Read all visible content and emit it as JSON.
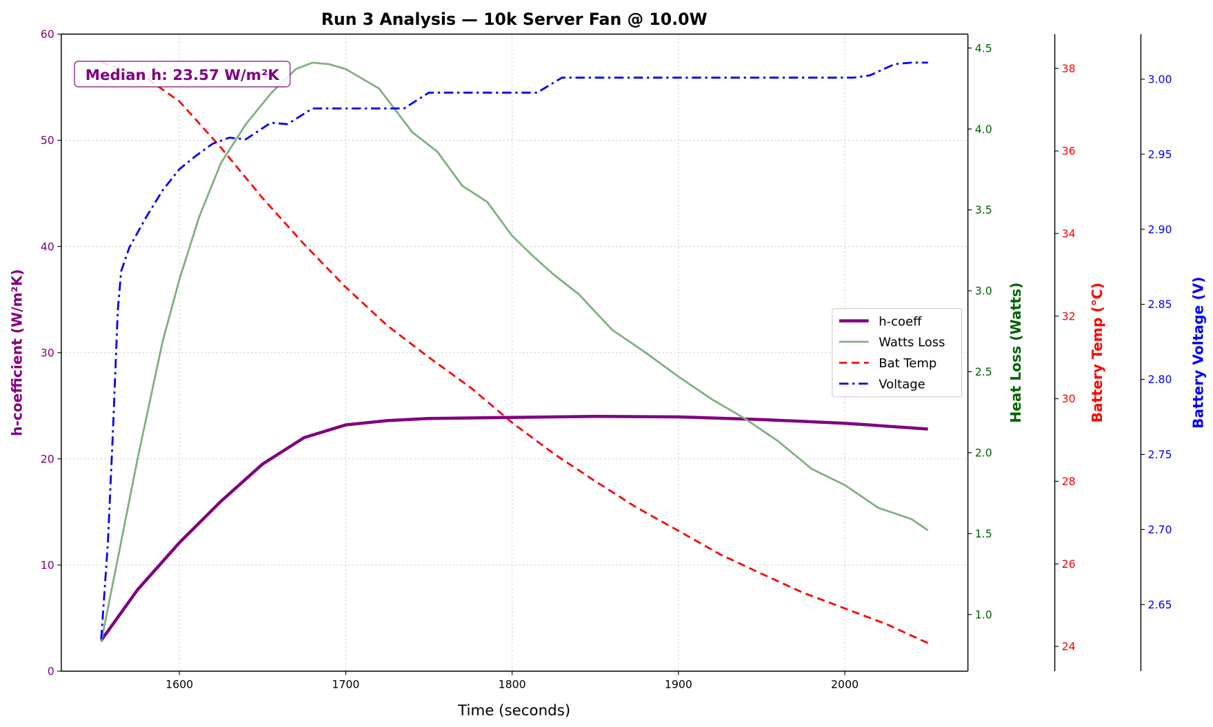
{
  "chart_data": {
    "type": "line",
    "title": "Run 3 Analysis — 10k Server Fan @ 10.0W",
    "xlabel": "Time (seconds)",
    "xlim": [
      1529,
      2074
    ],
    "xticks": [
      1600,
      1700,
      1800,
      1900,
      2000
    ],
    "grid": true,
    "legend_placement": "center-right",
    "annotation": "Median h: 23.57 W/m²K",
    "axes": [
      {
        "id": "h",
        "label": "h-coefficient (W/m²K)",
        "side": "left",
        "color": "#800080",
        "ylim": [
          0,
          60
        ],
        "ticks": [
          0,
          10,
          20,
          30,
          40,
          50,
          60
        ],
        "decimals": 0
      },
      {
        "id": "w",
        "label": "Heat Loss (Watts)",
        "side": "right",
        "color": "#006400",
        "ylim": [
          0.65,
          4.586
        ],
        "ticks": [
          1.0,
          1.5,
          2.0,
          2.5,
          3.0,
          3.5,
          4.0,
          4.5
        ],
        "decimals": 1
      },
      {
        "id": "t",
        "label": "Battery Temp (°C)",
        "side": "right-offset-1",
        "color": "#ff0000",
        "ylim": [
          23.4,
          38.83
        ],
        "ticks": [
          24,
          26,
          28,
          30,
          32,
          34,
          36,
          38
        ],
        "decimals": 0
      },
      {
        "id": "v",
        "label": "Battery Voltage (V)",
        "side": "right-offset-2",
        "color": "#0000ff",
        "ylim": [
          2.6056,
          3.03
        ],
        "ticks": [
          2.65,
          2.7,
          2.75,
          2.8,
          2.85,
          2.9,
          2.95,
          3.0
        ],
        "decimals": 2
      }
    ],
    "series": [
      {
        "name": "h-coeff",
        "axis": "h",
        "color": "#800080",
        "style": "solid",
        "width": 4,
        "x": [
          1553,
          1575,
          1600,
          1625,
          1650,
          1675,
          1700,
          1725,
          1750,
          1800,
          1850,
          1900,
          1950,
          2000,
          2050
        ],
        "y": [
          2.9,
          7.7,
          12.1,
          16.0,
          19.5,
          22.0,
          23.2,
          23.6,
          23.8,
          23.9,
          24.0,
          23.95,
          23.7,
          23.35,
          22.8
        ]
      },
      {
        "name": "Watts Loss",
        "axis": "w",
        "color": "#80b080",
        "style": "solid",
        "width": 2.5,
        "x": [
          1553,
          1565,
          1575,
          1590,
          1600,
          1612,
          1625,
          1640,
          1655,
          1670,
          1680,
          1690,
          1700,
          1720,
          1740,
          1755,
          1770,
          1785,
          1800,
          1812,
          1825,
          1840,
          1860,
          1880,
          1900,
          1920,
          1940,
          1960,
          1980,
          2000,
          2020,
          2040,
          2050
        ],
        "y": [
          0.83,
          1.45,
          1.97,
          2.69,
          3.07,
          3.46,
          3.79,
          4.03,
          4.22,
          4.37,
          4.41,
          4.4,
          4.37,
          4.25,
          3.98,
          3.86,
          3.65,
          3.55,
          3.34,
          3.22,
          3.1,
          2.98,
          2.76,
          2.62,
          2.47,
          2.33,
          2.21,
          2.07,
          1.9,
          1.8,
          1.66,
          1.59,
          1.52
        ]
      },
      {
        "name": "Bat Temp",
        "axis": "t",
        "color": "#ff0000",
        "style": "dashed",
        "width": 2.5,
        "x": [
          1553,
          1580,
          1600,
          1625,
          1650,
          1675,
          1700,
          1725,
          1750,
          1775,
          1800,
          1825,
          1850,
          1875,
          1900,
          1925,
          1950,
          1975,
          2000,
          2025,
          2050
        ],
        "y": [
          38.15,
          37.77,
          37.2,
          36.08,
          34.86,
          33.74,
          32.7,
          31.77,
          31.0,
          30.27,
          29.42,
          28.67,
          28.0,
          27.36,
          26.8,
          26.23,
          25.76,
          25.3,
          24.92,
          24.54,
          24.08
        ]
      },
      {
        "name": "Voltage",
        "axis": "v",
        "color": "#0000ff",
        "style": "dashdot",
        "width": 2.5,
        "x": [
          1553,
          1557,
          1560,
          1563,
          1565,
          1570,
          1580,
          1590,
          1600,
          1610,
          1620,
          1630,
          1640,
          1655,
          1665,
          1680,
          1700,
          1735,
          1750,
          1800,
          1815,
          1830,
          2005,
          2015,
          2030,
          2040,
          2050
        ],
        "y": [
          2.627,
          2.691,
          2.764,
          2.846,
          2.872,
          2.888,
          2.908,
          2.926,
          2.94,
          2.949,
          2.957,
          2.961,
          2.96,
          2.971,
          2.97,
          2.9805,
          2.9805,
          2.9805,
          2.991,
          2.991,
          2.991,
          3.001,
          3.001,
          3.0025,
          3.01,
          3.011,
          3.011
        ]
      }
    ]
  }
}
